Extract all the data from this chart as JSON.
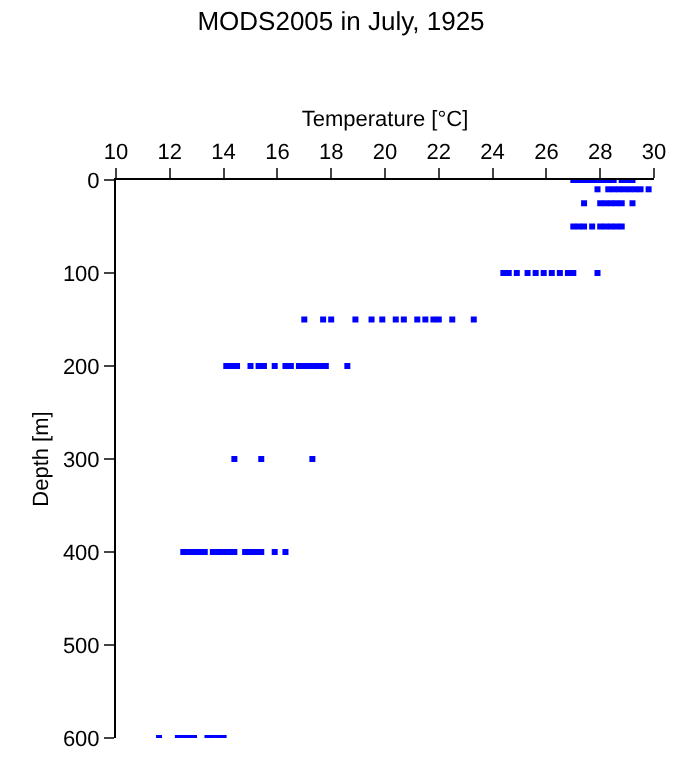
{
  "chart_data": {
    "type": "scatter",
    "title": "MODS2005 in July, 1925",
    "xlabel": "Temperature [°C]",
    "ylabel": "Depth [m]",
    "xlim": [
      10,
      30
    ],
    "xticks": [
      10,
      12,
      14,
      16,
      18,
      20,
      22,
      24,
      26,
      28,
      30
    ],
    "ylim": [
      600,
      0
    ],
    "yticks": [
      0,
      100,
      200,
      300,
      400,
      500,
      600
    ],
    "marker": "square",
    "series": [
      {
        "color": "#0000ff",
        "x": [
          27.0,
          27.2,
          27.4,
          27.6,
          27.8,
          28.0,
          28.2,
          28.4,
          28.5,
          28.8,
          29.0,
          29.2,
          27.9,
          28.3,
          28.5,
          28.7,
          28.9,
          29.1,
          29.3,
          29.5,
          29.8,
          27.4,
          28.0,
          28.2,
          28.4,
          28.6,
          28.8,
          29.2,
          27.0,
          27.2,
          27.4,
          27.7,
          28.0,
          28.2,
          28.4,
          28.6,
          28.8,
          24.4,
          24.6,
          24.9,
          25.3,
          25.6,
          25.9,
          26.2,
          26.5,
          26.8,
          27.0,
          27.9,
          17.0,
          17.7,
          18.0,
          18.9,
          19.5,
          19.9,
          20.4,
          20.7,
          21.2,
          21.5,
          21.8,
          22.0,
          22.5,
          23.3,
          14.1,
          14.3,
          14.5,
          15.0,
          15.3,
          15.5,
          15.9,
          16.3,
          16.5,
          16.8,
          17.0,
          17.2,
          17.4,
          17.6,
          17.8,
          18.6,
          14.4,
          15.4,
          17.3,
          12.5,
          12.7,
          12.9,
          13.1,
          13.3,
          13.6,
          13.8,
          14.0,
          14.2,
          14.4,
          14.8,
          15.0,
          15.2,
          15.4,
          15.9,
          16.3,
          11.6,
          12.3,
          12.5,
          12.7,
          12.9,
          13.4,
          13.6,
          13.8,
          14.0
        ],
        "values": [
          0,
          0,
          0,
          0,
          0,
          0,
          0,
          0,
          0,
          0,
          0,
          0,
          10,
          10,
          10,
          10,
          10,
          10,
          10,
          10,
          10,
          25,
          25,
          25,
          25,
          25,
          25,
          25,
          50,
          50,
          50,
          50,
          50,
          50,
          50,
          50,
          50,
          100,
          100,
          100,
          100,
          100,
          100,
          100,
          100,
          100,
          100,
          100,
          150,
          150,
          150,
          150,
          150,
          150,
          150,
          150,
          150,
          150,
          150,
          150,
          150,
          150,
          200,
          200,
          200,
          200,
          200,
          200,
          200,
          200,
          200,
          200,
          200,
          200,
          200,
          200,
          200,
          200,
          300,
          300,
          300,
          400,
          400,
          400,
          400,
          400,
          400,
          400,
          400,
          400,
          400,
          400,
          400,
          400,
          400,
          400,
          400,
          600,
          600,
          600,
          600,
          600,
          600,
          600,
          600,
          600
        ]
      }
    ]
  }
}
